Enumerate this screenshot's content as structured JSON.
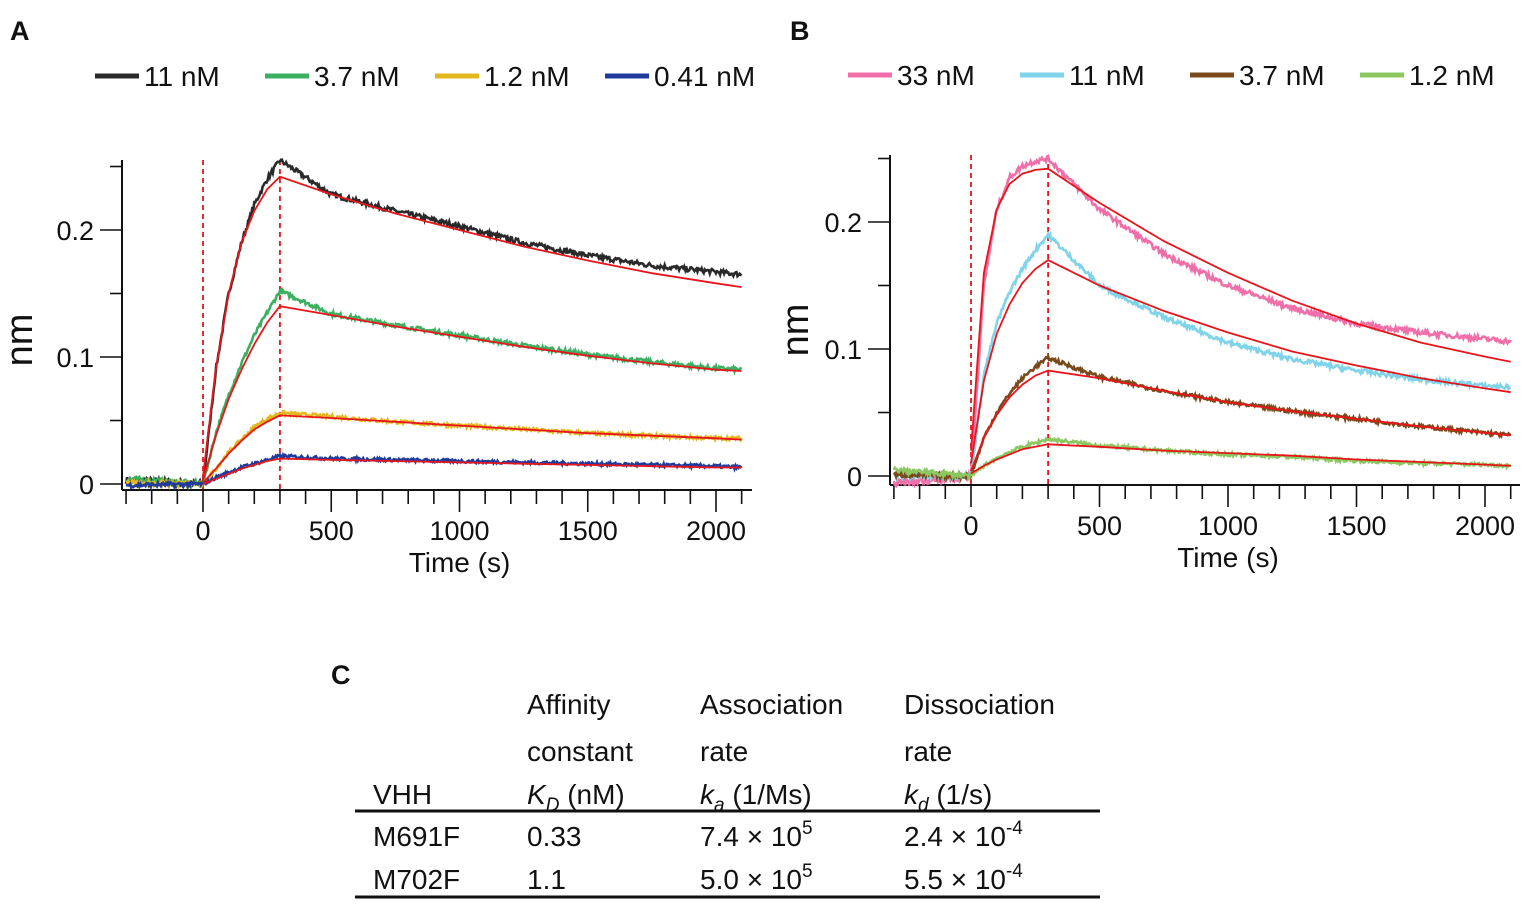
{
  "chart_data": [
    {
      "panel": "A",
      "type": "line",
      "xlabel": "Time (s)",
      "ylabel": "nm",
      "xlim": [
        -300,
        2100
      ],
      "ylim": [
        -0.005,
        0.255
      ],
      "xticks": [
        0,
        500,
        1000,
        1500,
        2000
      ],
      "xtick_labels": [
        "0",
        "500",
        "1000",
        "1500",
        "2000"
      ],
      "yticks": [
        0,
        0.1,
        0.2
      ],
      "ytick_labels": [
        "0",
        "0.1",
        "0.2"
      ],
      "vlines": [
        0,
        300
      ],
      "fit_color": "#e8151b",
      "legend_position": "top",
      "x": [
        -300,
        0,
        50,
        100,
        150,
        200,
        250,
        300,
        500,
        750,
        1000,
        1250,
        1500,
        1750,
        2000,
        2100
      ],
      "series": [
        {
          "name": "11 nM",
          "color": "#2a2a2a",
          "values": [
            0.003,
            0.0,
            0.09,
            0.15,
            0.19,
            0.22,
            0.24,
            0.255,
            0.228,
            0.215,
            0.203,
            0.19,
            0.18,
            0.172,
            0.167,
            0.165
          ],
          "fit": [
            0.0,
            0.006,
            0.09,
            0.15,
            0.19,
            0.215,
            0.232,
            0.242,
            0.228,
            0.213,
            0.2,
            0.187,
            0.176,
            0.166,
            0.158,
            0.155
          ]
        },
        {
          "name": "3.7 nM",
          "color": "#3cb060",
          "values": [
            0.004,
            0.0,
            0.04,
            0.07,
            0.095,
            0.117,
            0.135,
            0.152,
            0.134,
            0.125,
            0.117,
            0.109,
            0.102,
            0.096,
            0.091,
            0.09
          ],
          "fit": [
            0.0,
            0.003,
            0.038,
            0.067,
            0.09,
            0.11,
            0.127,
            0.14,
            0.133,
            0.124,
            0.116,
            0.108,
            0.101,
            0.095,
            0.09,
            0.089
          ]
        },
        {
          "name": "1.2 nM",
          "color": "#e2b81c",
          "values": [
            0.001,
            0.0,
            0.012,
            0.025,
            0.035,
            0.045,
            0.051,
            0.056,
            0.053,
            0.049,
            0.046,
            0.043,
            0.04,
            0.038,
            0.036,
            0.036
          ],
          "fit": [
            0.0,
            0.001,
            0.012,
            0.024,
            0.034,
            0.043,
            0.049,
            0.054,
            0.052,
            0.049,
            0.046,
            0.043,
            0.04,
            0.038,
            0.036,
            0.035
          ]
        },
        {
          "name": "0.41 nM",
          "color": "#1f3c9c",
          "values": [
            -0.001,
            0.0,
            0.005,
            0.009,
            0.013,
            0.016,
            0.019,
            0.022,
            0.02,
            0.019,
            0.018,
            0.017,
            0.016,
            0.015,
            0.014,
            0.013
          ],
          "fit": [
            0.0,
            0.0,
            0.004,
            0.008,
            0.012,
            0.015,
            0.018,
            0.02,
            0.019,
            0.018,
            0.017,
            0.016,
            0.015,
            0.014,
            0.013,
            0.013
          ]
        }
      ]
    },
    {
      "panel": "B",
      "type": "line",
      "xlabel": "Time (s)",
      "ylabel": "nm",
      "xlim": [
        -315,
        2100
      ],
      "ylim": [
        -0.008,
        0.255
      ],
      "xticks": [
        0,
        500,
        1000,
        1500,
        2000
      ],
      "xtick_labels": [
        "0",
        "500",
        "1000",
        "1500",
        "2000"
      ],
      "yticks": [
        0,
        0.1,
        0.2
      ],
      "ytick_labels": [
        "0",
        "0.1",
        "0.2"
      ],
      "vlines": [
        0,
        300
      ],
      "fit_color": "#e8151b",
      "legend_position": "top",
      "x": [
        -300,
        0,
        50,
        100,
        150,
        200,
        250,
        300,
        500,
        750,
        1000,
        1250,
        1500,
        1750,
        2000,
        2100
      ],
      "series": [
        {
          "name": "33 nM",
          "color": "#f06fa8",
          "values": [
            -0.006,
            0.0,
            0.15,
            0.21,
            0.235,
            0.244,
            0.248,
            0.25,
            0.21,
            0.175,
            0.15,
            0.132,
            0.12,
            0.113,
            0.108,
            0.106
          ],
          "fit": [
            0.0,
            0.02,
            0.16,
            0.21,
            0.23,
            0.238,
            0.241,
            0.242,
            0.215,
            0.185,
            0.16,
            0.138,
            0.12,
            0.105,
            0.094,
            0.09
          ]
        },
        {
          "name": "11 nM",
          "color": "#7fd3ea",
          "values": [
            0.0,
            0.0,
            0.08,
            0.12,
            0.145,
            0.163,
            0.178,
            0.19,
            0.15,
            0.125,
            0.105,
            0.092,
            0.083,
            0.076,
            0.071,
            0.07
          ],
          "fit": [
            0.0,
            0.01,
            0.075,
            0.112,
            0.135,
            0.152,
            0.163,
            0.17,
            0.15,
            0.13,
            0.113,
            0.098,
            0.087,
            0.077,
            0.069,
            0.066
          ]
        },
        {
          "name": "3.7 nM",
          "color": "#7b4a1a",
          "values": [
            0.001,
            0.0,
            0.03,
            0.05,
            0.065,
            0.077,
            0.086,
            0.093,
            0.078,
            0.067,
            0.058,
            0.051,
            0.045,
            0.039,
            0.034,
            0.032
          ],
          "fit": [
            0.0,
            0.004,
            0.03,
            0.048,
            0.062,
            0.072,
            0.079,
            0.083,
            0.077,
            0.067,
            0.058,
            0.051,
            0.045,
            0.039,
            0.034,
            0.032
          ]
        },
        {
          "name": "1.2 nM",
          "color": "#8cc860",
          "values": [
            0.005,
            0.0,
            0.008,
            0.014,
            0.019,
            0.023,
            0.026,
            0.029,
            0.024,
            0.02,
            0.017,
            0.015,
            0.012,
            0.01,
            0.009,
            0.008
          ],
          "fit": [
            0.0,
            0.002,
            0.008,
            0.013,
            0.017,
            0.021,
            0.023,
            0.025,
            0.023,
            0.02,
            0.018,
            0.016,
            0.013,
            0.011,
            0.009,
            0.008
          ]
        }
      ]
    }
  ],
  "panels": {
    "a": "A",
    "b": "B",
    "c": "C"
  },
  "table": {
    "headers": [
      [
        "",
        "Affinity",
        "Association",
        "Dissociation"
      ],
      [
        "",
        "constant",
        "rate",
        "rate"
      ]
    ],
    "unit_row": {
      "vhh": "VHH",
      "kd_sym": "K",
      "kd_sub": "D",
      "kd_unit": " (nM)",
      "ka_sym": "k",
      "ka_sub": "a",
      "ka_unit": " (1/Ms)",
      "koff_sym": "k",
      "koff_sub": "d",
      "koff_unit": " (1/s)"
    },
    "rows": [
      {
        "vhh": "M691F",
        "KD": "0.33",
        "ka_base": "7.4 × 10",
        "ka_exp": "5",
        "kd_base": "2.4 × 10",
        "kd_exp": "-4"
      },
      {
        "vhh": "M702F",
        "KD": "1.1",
        "ka_base": "5.0 × 10",
        "ka_exp": "5",
        "kd_base": "5.5 × 10",
        "kd_exp": "-4"
      }
    ]
  }
}
